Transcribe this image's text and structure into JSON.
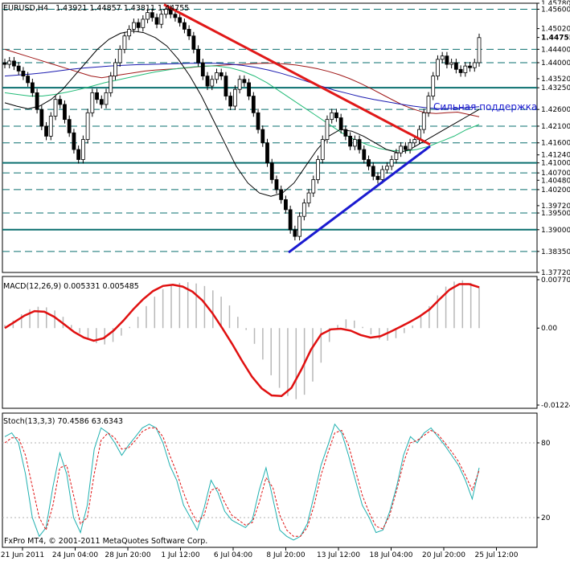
{
  "chart_data": [
    {
      "type": "candlestick",
      "header": {
        "symbol": "EURUSD,H4",
        "values": "1.43921 1.44857 1.43811 1.44755"
      },
      "ylim": [
        1.3772,
        1.4578
      ],
      "price_ticks": [
        "1.45780",
        "1.45600",
        "1.45020",
        "1.44755",
        "1.44400",
        "1.44000",
        "1.43520",
        "1.43250",
        "1.42600",
        "1.42100",
        "1.41600",
        "1.41240",
        "1.41000",
        "1.40700",
        "1.40480",
        "1.40200",
        "1.39720",
        "1.39500",
        "1.39000",
        "1.38350",
        "1.37720"
      ],
      "highlight_ticks": [
        "1.45600",
        "1.44755",
        "1.44400",
        "1.44000",
        "1.43250",
        "1.42600",
        "1.42100",
        "1.41600",
        "1.41000",
        "1.40700",
        "1.40200",
        "1.39500",
        "1.39000",
        "1.38350"
      ],
      "level_lines": [
        1.456,
        1.444,
        1.44,
        1.4325,
        1.426,
        1.421,
        1.416,
        1.41,
        1.407,
        1.402,
        1.395,
        1.39,
        1.3835
      ],
      "solid_levels": [
        1.4325,
        1.41,
        1.39
      ],
      "annotation": "Сильная поддержка",
      "x_labels": [
        "21 Jun 2011",
        "24 Jun 04:00",
        "28 Jun 20:00",
        "1 Jul 12:00",
        "6 Jul 04:00",
        "8 Jul 20:00",
        "13 Jul 12:00",
        "18 Jul 04:00",
        "20 Jul 20:00",
        "25 Jul 12:00"
      ],
      "close": [
        1.4395,
        1.4405,
        1.439,
        1.4375,
        1.436,
        1.434,
        1.431,
        1.426,
        1.421,
        1.418,
        1.424,
        1.429,
        1.4275,
        1.423,
        1.419,
        1.414,
        1.411,
        1.417,
        1.425,
        1.431,
        1.429,
        1.4275,
        1.431,
        1.436,
        1.44,
        1.444,
        1.448,
        1.45,
        1.452,
        1.4505,
        1.453,
        1.455,
        1.4535,
        1.4515,
        1.4545,
        1.456,
        1.4545,
        1.4535,
        1.452,
        1.45,
        1.448,
        1.444,
        1.44,
        1.436,
        1.433,
        1.435,
        1.437,
        1.436,
        1.43,
        1.427,
        1.432,
        1.435,
        1.434,
        1.43,
        1.425,
        1.42,
        1.416,
        1.41,
        1.405,
        1.402,
        1.399,
        1.396,
        1.39,
        1.388,
        1.394,
        1.398,
        1.401,
        1.405,
        1.411,
        1.417,
        1.423,
        1.425,
        1.4235,
        1.42,
        1.418,
        1.415,
        1.417,
        1.414,
        1.411,
        1.409,
        1.406,
        1.405,
        1.408,
        1.409,
        1.411,
        1.413,
        1.415,
        1.414,
        1.416,
        1.417,
        1.42,
        1.425,
        1.43,
        1.436,
        1.441,
        1.442,
        1.4395,
        1.44,
        1.438,
        1.437,
        1.439,
        1.4385,
        1.44,
        1.4475
      ],
      "ma_red": [
        1.444,
        1.443,
        1.442,
        1.441,
        1.44,
        1.439,
        1.438,
        1.437,
        1.436,
        1.4355,
        1.436,
        1.4365,
        1.437,
        1.4375,
        1.4378,
        1.438,
        1.4382,
        1.4385,
        1.4388,
        1.439,
        1.4392,
        1.4394,
        1.4395,
        1.4397,
        1.4398,
        1.4398,
        1.4396,
        1.4393,
        1.4388,
        1.4382,
        1.4374,
        1.4364,
        1.4352,
        1.4338,
        1.4322,
        1.4305,
        1.4288,
        1.4272,
        1.426,
        1.425,
        1.4248,
        1.425,
        1.4252,
        1.4245,
        1.4238
      ],
      "ma_blue": [
        1.436,
        1.4363,
        1.4366,
        1.437,
        1.4375,
        1.438,
        1.4384,
        1.4387,
        1.439,
        1.4392,
        1.4394,
        1.4395,
        1.4396,
        1.4397,
        1.4398,
        1.4398,
        1.4398,
        1.4396,
        1.4392,
        1.4386,
        1.4378,
        1.4368,
        1.4356,
        1.4343,
        1.433,
        1.4318,
        1.4308,
        1.4298,
        1.429,
        1.4283,
        1.4276,
        1.427,
        1.4265,
        1.4262,
        1.4263,
        1.4265,
        1.4268
      ],
      "ma_green": [
        1.431,
        1.4305,
        1.43,
        1.43,
        1.4305,
        1.4312,
        1.432,
        1.433,
        1.434,
        1.4348,
        1.4356,
        1.4364,
        1.4372,
        1.4378,
        1.4383,
        1.4387,
        1.439,
        1.439,
        1.4385,
        1.4375,
        1.436,
        1.434,
        1.4315,
        1.429,
        1.4265,
        1.424,
        1.4215,
        1.419,
        1.417,
        1.4155,
        1.4143,
        1.4137,
        1.4135,
        1.414,
        1.415,
        1.4165,
        1.418,
        1.42,
        1.4215
      ],
      "ma_black": [
        1.428,
        1.427,
        1.4262,
        1.427,
        1.429,
        1.432,
        1.436,
        1.44,
        1.444,
        1.447,
        1.4488,
        1.4495,
        1.449,
        1.4475,
        1.445,
        1.441,
        1.436,
        1.43,
        1.423,
        1.416,
        1.409,
        1.404,
        1.401,
        1.4,
        1.401,
        1.404,
        1.409,
        1.414,
        1.418,
        1.42,
        1.4195,
        1.418,
        1.416,
        1.414,
        1.413,
        1.414,
        1.416,
        1.418,
        1.42,
        1.422,
        1.424,
        1.426
      ]
    },
    {
      "type": "histogram-line",
      "header": "MACD(12,26,9) 0.005331 0.005485",
      "ticks": [
        "0.00770",
        "0.00",
        "-0.01224"
      ],
      "ylim": [
        -0.01224,
        0.0077
      ],
      "histogram": [
        0.0005,
        0.0012,
        0.0022,
        0.003,
        0.0034,
        0.0033,
        0.0028,
        0.0018,
        0.0005,
        -0.0008,
        -0.0018,
        -0.0024,
        -0.0026,
        -0.0022,
        -0.0012,
        0.0002,
        0.0018,
        0.0035,
        0.005,
        0.0062,
        0.0069,
        0.0072,
        0.0073,
        0.0071,
        0.0067,
        0.006,
        0.005,
        0.0036,
        0.0018,
        -0.0003,
        -0.0025,
        -0.005,
        -0.0075,
        -0.0095,
        -0.0108,
        -0.0113,
        -0.0106,
        -0.0085,
        -0.0055,
        -0.0022,
        0.0005,
        0.0014,
        0.0012,
        0.0002,
        -0.001,
        -0.0018,
        -0.002,
        -0.0016,
        -0.0008,
        0.0004,
        0.0018,
        0.0035,
        0.0052,
        0.0066,
        0.0074,
        0.0076,
        0.0072,
        0.0066
      ],
      "signal": [
        0.0,
        0.001,
        0.002,
        0.0027,
        0.0026,
        0.0018,
        0.0006,
        -0.0006,
        -0.0015,
        -0.002,
        -0.0016,
        -0.0004,
        0.0012,
        0.003,
        0.0046,
        0.0059,
        0.0067,
        0.0069,
        0.0066,
        0.0058,
        0.0044,
        0.0024,
        0.0,
        -0.0025,
        -0.0052,
        -0.0077,
        -0.0096,
        -0.0107,
        -0.0108,
        -0.0095,
        -0.0066,
        -0.0034,
        -0.001,
        -0.0002,
        -0.0001,
        -0.0004,
        -0.0011,
        -0.0015,
        -0.0013,
        -0.0006,
        0.0002,
        0.001,
        0.0019,
        0.003,
        0.0046,
        0.0061,
        0.007,
        0.007,
        0.0065
      ]
    },
    {
      "type": "line",
      "header": "Stoch(13,3,3) 70.4586 63.6343",
      "ticks": [
        "80",
        "20"
      ],
      "ylim": [
        0,
        100
      ],
      "main": [
        85,
        88,
        80,
        55,
        20,
        5,
        12,
        45,
        72,
        55,
        20,
        8,
        30,
        75,
        92,
        88,
        80,
        70,
        78,
        85,
        92,
        95,
        92,
        80,
        62,
        50,
        30,
        20,
        10,
        28,
        50,
        40,
        25,
        18,
        15,
        12,
        18,
        42,
        60,
        35,
        10,
        5,
        2,
        5,
        15,
        38,
        62,
        78,
        95,
        88,
        70,
        50,
        30,
        20,
        8,
        10,
        25,
        45,
        70,
        85,
        80,
        88,
        92,
        85,
        78,
        70,
        62,
        50,
        35,
        60
      ],
      "signal": [
        80,
        84,
        84,
        70,
        45,
        20,
        10,
        30,
        60,
        62,
        38,
        15,
        20,
        55,
        82,
        88,
        84,
        75,
        76,
        82,
        89,
        92,
        92,
        85,
        70,
        56,
        40,
        26,
        16,
        22,
        42,
        44,
        32,
        22,
        18,
        14,
        16,
        32,
        52,
        44,
        22,
        10,
        5,
        5,
        12,
        30,
        54,
        72,
        88,
        90,
        78,
        58,
        38,
        24,
        13,
        11,
        22,
        42,
        64,
        80,
        82,
        86,
        90,
        87,
        80,
        73,
        65,
        54,
        42,
        58
      ]
    }
  ],
  "copyright": "FxPro MT4, © 2001-2011 MetaQuotes Software Corp."
}
